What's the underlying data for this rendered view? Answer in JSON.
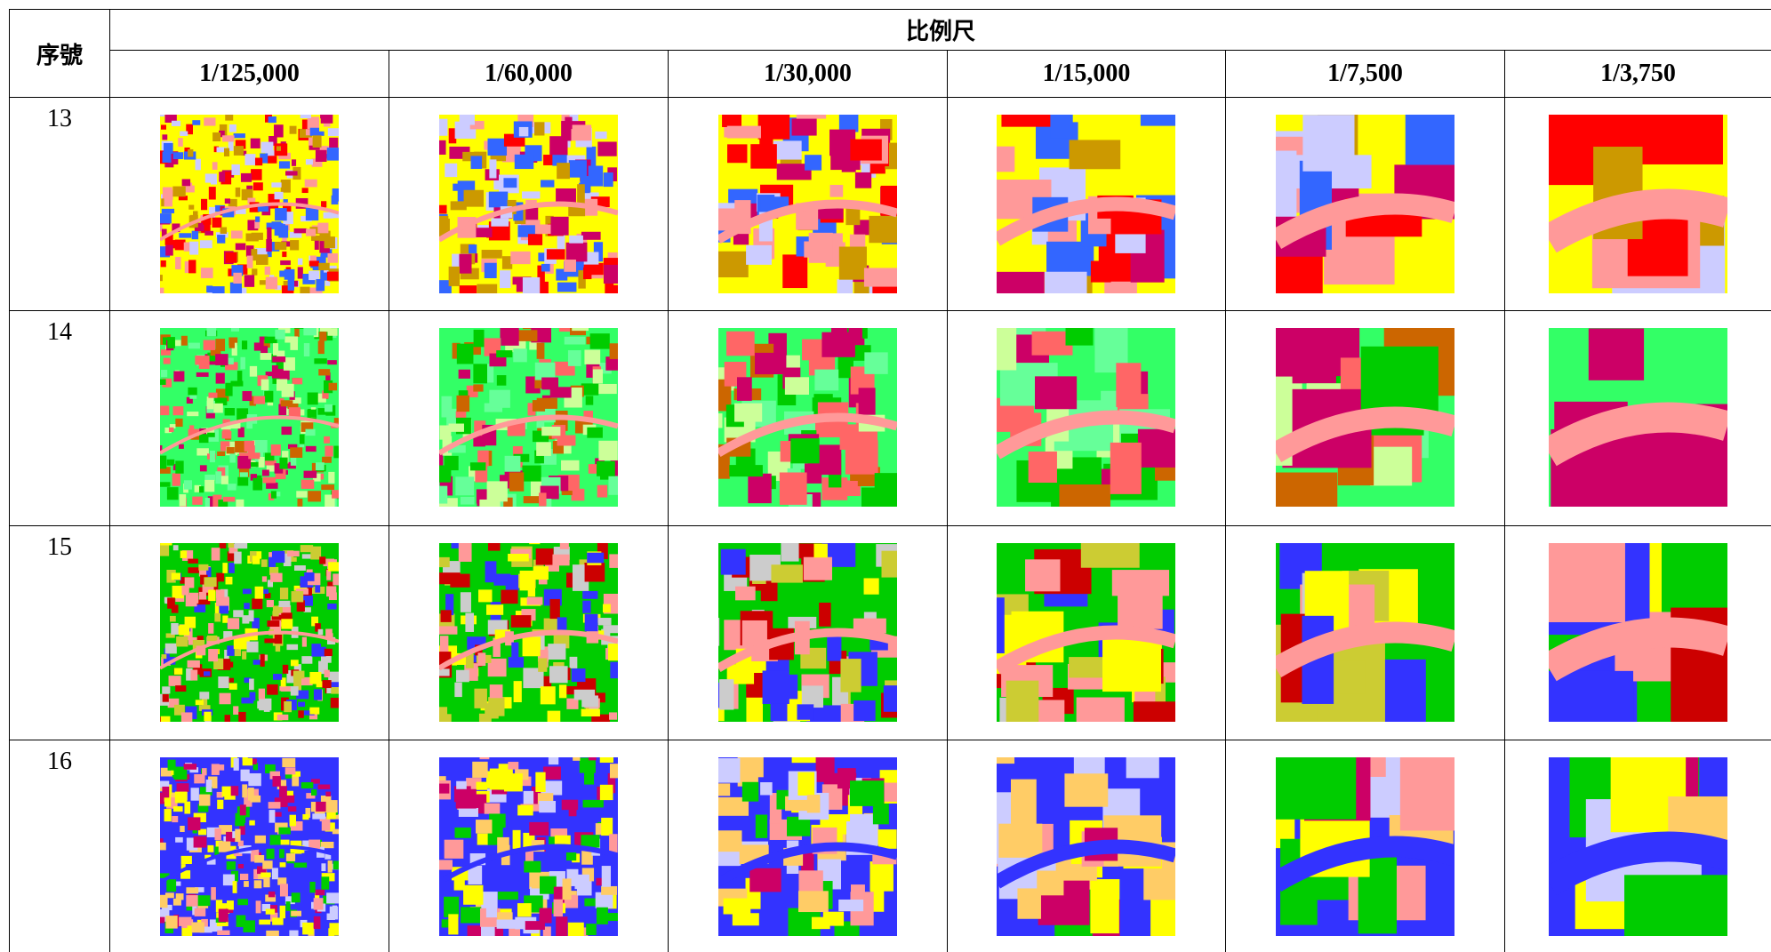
{
  "header": {
    "index_label": "序號",
    "scale_label": "比例尺",
    "scales": [
      "1/125,000",
      "1/60,000",
      "1/30,000",
      "1/15,000",
      "1/7,500",
      "1/3,750"
    ]
  },
  "table": {
    "rows": [
      {
        "id": "13"
      },
      {
        "id": "14"
      },
      {
        "id": "15"
      },
      {
        "id": "16"
      }
    ]
  }
}
